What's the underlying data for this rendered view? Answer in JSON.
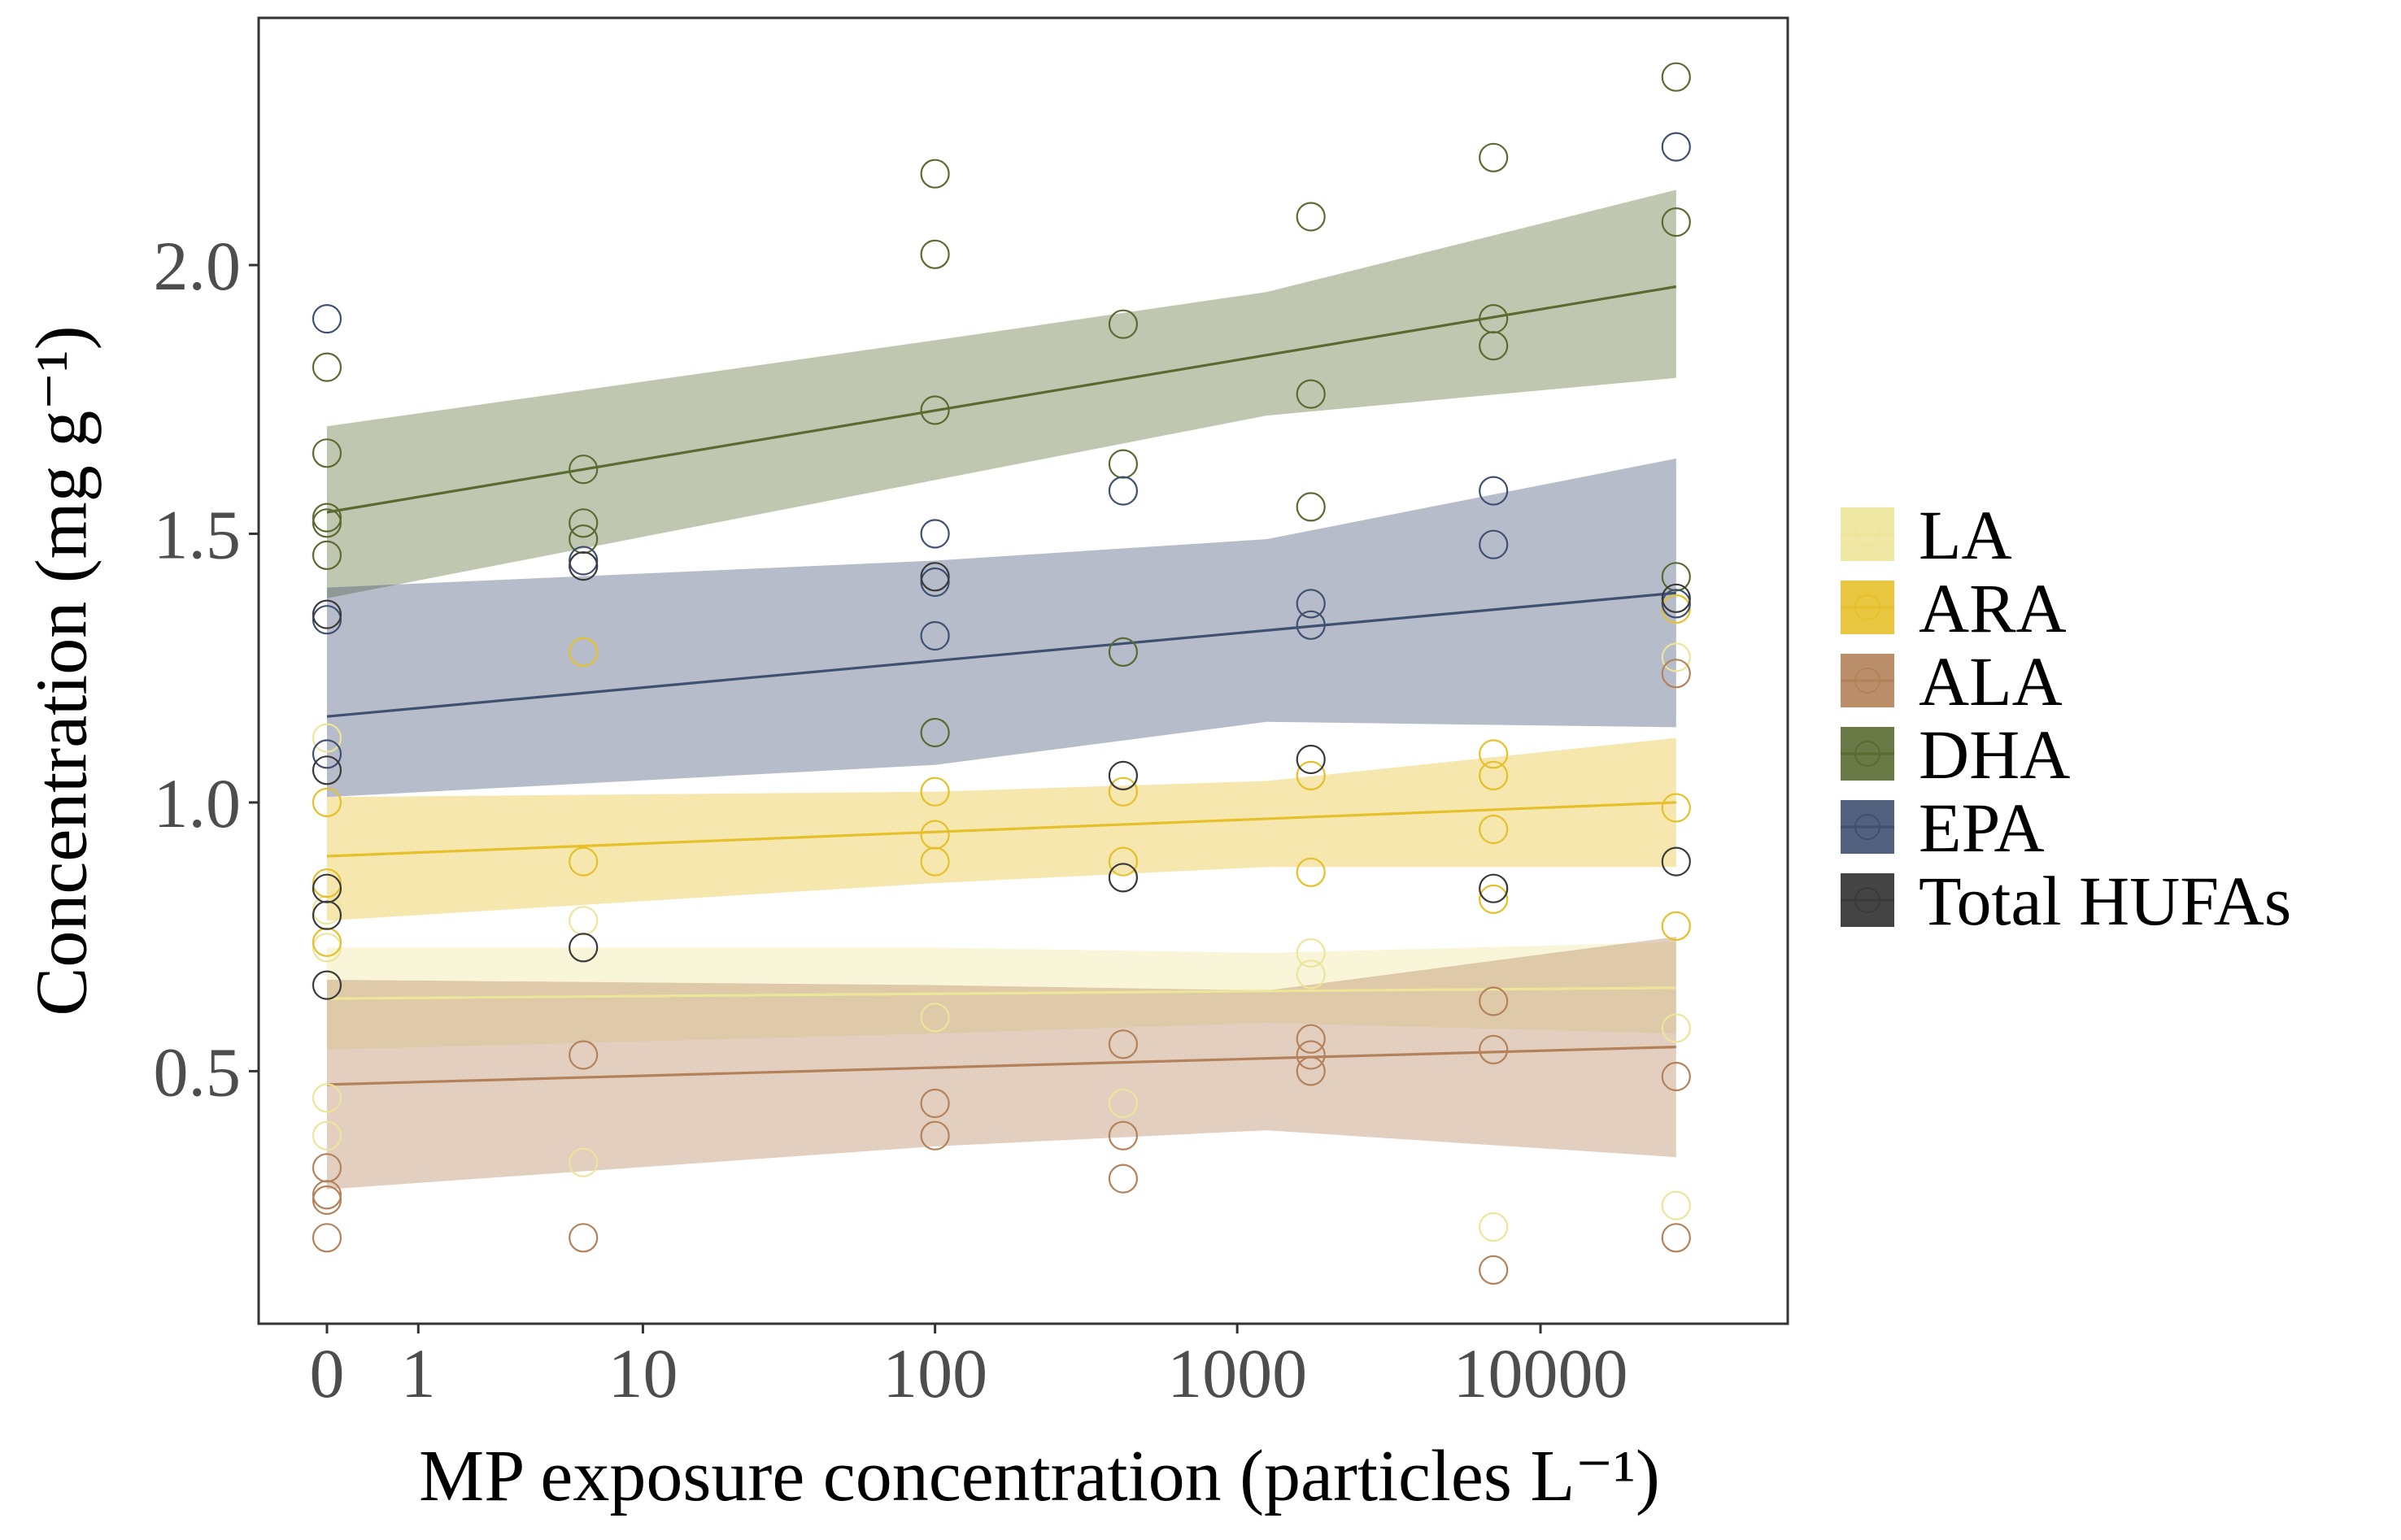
{
  "chart_data": {
    "type": "scatter",
    "title": "",
    "xlabel": "MP exposure concentration (particles L⁻¹)",
    "ylabel": "Concentration (mg g⁻¹)",
    "x_scale": "pseudo-log",
    "x_ticks": [
      0,
      1,
      10,
      100,
      1000,
      10000
    ],
    "x_tick_labels": [
      "0",
      "1",
      "10",
      "100",
      "1000",
      "10000"
    ],
    "y_ticks": [
      0.5,
      1.0,
      1.5,
      2.0
    ],
    "y_tick_labels": [
      "0.5",
      "1.0",
      "1.5",
      "2.0"
    ],
    "xlim": [
      0,
      50000
    ],
    "ylim": [
      0.03,
      2.46
    ],
    "grid": false,
    "legend_position": "right",
    "x": [
      0,
      6,
      100,
      420,
      1750,
      7000,
      28000
    ],
    "series": [
      {
        "name": "LA",
        "color": "#ece59a",
        "fit": {
          "x": [
            0,
            28000
          ],
          "y": [
            0.635,
            0.655
          ]
        },
        "band": {
          "x": [
            0,
            100,
            1250,
            28000
          ],
          "lower": [
            0.54,
            0.57,
            0.59,
            0.57
          ],
          "upper": [
            0.73,
            0.73,
            0.72,
            0.74
          ]
        },
        "points": [
          [
            0,
            0.38
          ],
          [
            0,
            0.45
          ],
          [
            0,
            0.73
          ],
          [
            0,
            0.8
          ],
          [
            0,
            1.12
          ],
          [
            6,
            0.33
          ],
          [
            6,
            0.78
          ],
          [
            100,
            0.6
          ],
          [
            420,
            0.44
          ],
          [
            1750,
            0.68
          ],
          [
            1750,
            0.72
          ],
          [
            7000,
            0.21
          ],
          [
            7000,
            0.84
          ],
          [
            28000,
            0.25
          ],
          [
            28000,
            0.58
          ],
          [
            28000,
            1.27
          ]
        ]
      },
      {
        "name": "ARA",
        "color": "#e5c02a",
        "fit": {
          "x": [
            0,
            28000
          ],
          "y": [
            0.9,
            1.0
          ]
        },
        "band": {
          "x": [
            0,
            100,
            1250,
            28000
          ],
          "lower": [
            0.78,
            0.85,
            0.88,
            0.88
          ],
          "upper": [
            1.01,
            1.02,
            1.04,
            1.12
          ]
        },
        "points": [
          [
            0,
            0.74
          ],
          [
            0,
            0.85
          ],
          [
            0,
            1.0
          ],
          [
            6,
            0.89
          ],
          [
            6,
            1.28
          ],
          [
            100,
            0.89
          ],
          [
            100,
            0.94
          ],
          [
            100,
            1.02
          ],
          [
            420,
            0.89
          ],
          [
            420,
            1.02
          ],
          [
            1750,
            0.87
          ],
          [
            1750,
            1.05
          ],
          [
            7000,
            0.82
          ],
          [
            7000,
            0.95
          ],
          [
            7000,
            1.05
          ],
          [
            7000,
            1.09
          ],
          [
            28000,
            0.77
          ],
          [
            28000,
            0.99
          ],
          [
            28000,
            1.36
          ]
        ]
      },
      {
        "name": "ALA",
        "color": "#b4825a",
        "fit": {
          "x": [
            0,
            28000
          ],
          "y": [
            0.475,
            0.545
          ]
        },
        "band": {
          "x": [
            0,
            100,
            1250,
            28000
          ],
          "lower": [
            0.28,
            0.36,
            0.39,
            0.34
          ],
          "upper": [
            0.67,
            0.66,
            0.65,
            0.75
          ]
        },
        "points": [
          [
            0,
            0.19
          ],
          [
            0,
            0.26
          ],
          [
            0,
            0.27
          ],
          [
            0,
            0.32
          ],
          [
            6,
            0.19
          ],
          [
            6,
            0.53
          ],
          [
            100,
            0.38
          ],
          [
            100,
            0.44
          ],
          [
            420,
            0.3
          ],
          [
            420,
            0.38
          ],
          [
            420,
            0.55
          ],
          [
            1750,
            0.5
          ],
          [
            1750,
            0.53
          ],
          [
            1750,
            0.56
          ],
          [
            7000,
            0.13
          ],
          [
            7000,
            0.54
          ],
          [
            7000,
            0.63
          ],
          [
            28000,
            0.19
          ],
          [
            28000,
            0.49
          ],
          [
            28000,
            1.24
          ]
        ]
      },
      {
        "name": "DHA",
        "color": "#5a6b32",
        "fit": {
          "x": [
            0,
            28000
          ],
          "y": [
            1.54,
            1.96
          ]
        },
        "band": {
          "x": [
            0,
            100,
            1250,
            28000
          ],
          "lower": [
            1.38,
            1.6,
            1.72,
            1.79
          ],
          "upper": [
            1.7,
            1.86,
            1.95,
            2.14
          ]
        },
        "points": [
          [
            0,
            1.46
          ],
          [
            0,
            1.52
          ],
          [
            0,
            1.53
          ],
          [
            0,
            1.65
          ],
          [
            0,
            1.81
          ],
          [
            6,
            1.49
          ],
          [
            6,
            1.52
          ],
          [
            6,
            1.62
          ],
          [
            100,
            1.13
          ],
          [
            100,
            1.73
          ],
          [
            100,
            2.02
          ],
          [
            100,
            2.17
          ],
          [
            420,
            1.28
          ],
          [
            420,
            1.63
          ],
          [
            420,
            1.89
          ],
          [
            1750,
            1.55
          ],
          [
            1750,
            1.76
          ],
          [
            1750,
            2.09
          ],
          [
            7000,
            1.85
          ],
          [
            7000,
            1.9
          ],
          [
            7000,
            2.2
          ],
          [
            28000,
            1.42
          ],
          [
            28000,
            2.08
          ],
          [
            28000,
            2.35
          ]
        ]
      },
      {
        "name": "EPA",
        "color": "#3f5070",
        "fit": {
          "x": [
            0,
            28000
          ],
          "y": [
            1.16,
            1.39
          ]
        },
        "band": {
          "x": [
            0,
            100,
            1250,
            28000
          ],
          "lower": [
            1.01,
            1.07,
            1.15,
            1.14
          ],
          "upper": [
            1.4,
            1.45,
            1.49,
            1.64
          ]
        },
        "points": [
          [
            0,
            1.09
          ],
          [
            0,
            1.34
          ],
          [
            0,
            1.9
          ],
          [
            6,
            1.45
          ],
          [
            100,
            1.31
          ],
          [
            100,
            1.41
          ],
          [
            100,
            1.5
          ],
          [
            420,
            1.58
          ],
          [
            1750,
            1.33
          ],
          [
            1750,
            1.37
          ],
          [
            7000,
            1.48
          ],
          [
            7000,
            1.58
          ],
          [
            28000,
            1.37
          ],
          [
            28000,
            2.22
          ]
        ]
      },
      {
        "name": "Total HUFAs",
        "color": "#3a3a3a",
        "fit": null,
        "band": null,
        "points": [
          [
            0,
            0.66
          ],
          [
            0,
            0.79
          ],
          [
            0,
            0.84
          ],
          [
            0,
            1.06
          ],
          [
            0,
            1.35
          ],
          [
            6,
            0.73
          ],
          [
            6,
            1.44
          ],
          [
            100,
            1.42
          ],
          [
            420,
            0.86
          ],
          [
            420,
            1.05
          ],
          [
            1750,
            1.08
          ],
          [
            7000,
            0.84
          ],
          [
            28000,
            0.89
          ],
          [
            28000,
            1.38
          ]
        ]
      }
    ]
  }
}
